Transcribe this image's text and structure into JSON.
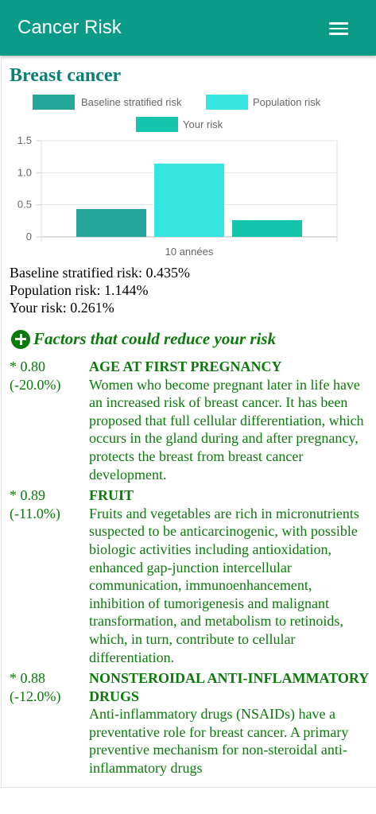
{
  "app": {
    "title": "Cancer Risk",
    "menu_icon": "hamburger-menu-icon"
  },
  "section": {
    "title": "Breast cancer"
  },
  "chart_data": {
    "type": "bar",
    "categories": [
      "10 années"
    ],
    "series": [
      {
        "name": "Baseline stratified risk",
        "values": [
          0.435
        ],
        "color": "#26a69a"
      },
      {
        "name": "Population risk",
        "values": [
          1.144
        ],
        "color": "#35e6e0"
      },
      {
        "name": "Your risk",
        "values": [
          0.261
        ],
        "color": "#14c4ab"
      }
    ],
    "ylim": [
      0,
      1.5
    ],
    "yticks": [
      "0",
      "0.5",
      "1.0",
      "1.5"
    ],
    "grid": true,
    "legend": "top"
  },
  "stats": {
    "baseline": "Baseline stratified risk: 0.435%",
    "population": "Population risk: 1.144%",
    "yours": "Your risk: 0.261%"
  },
  "factors_header": {
    "icon": "plus-circle-icon",
    "title": "Factors that could reduce your risk"
  },
  "factors": [
    {
      "mult": "* 0.80",
      "pct": "(-20.0%)",
      "name": "AGE AT FIRST PREGNANCY",
      "desc": "Women who become pregnant later in life have an increased risk of breast cancer. It has been proposed that full cellular differentiation, which occurs in the gland during and after pregnancy, protects the breast from breast cancer development."
    },
    {
      "mult": "* 0.89",
      "pct": "(-11.0%)",
      "name": "FRUIT",
      "desc": "Fruits and vegetables are rich in micronutrients suspected to be anticarcinogenic, with possible biologic activities including antioxidation, enhanced gap-junction intercellular communication, immunoenhancement, inhibition of tumorigenesis and malignant transformation, and metabolism to retinoids, which, in turn, contribute to cellular differentiation."
    },
    {
      "mult": "* 0.88",
      "pct": "(-12.0%)",
      "name": "NONSTEROIDAL ANTI-INFLAMMATORY DRUGS",
      "desc": "Anti-inflammatory drugs (NSAIDs) have a preventative role for breast cancer. A primary preventive mechanism for non-steroidal anti-inflammatory drugs"
    }
  ]
}
